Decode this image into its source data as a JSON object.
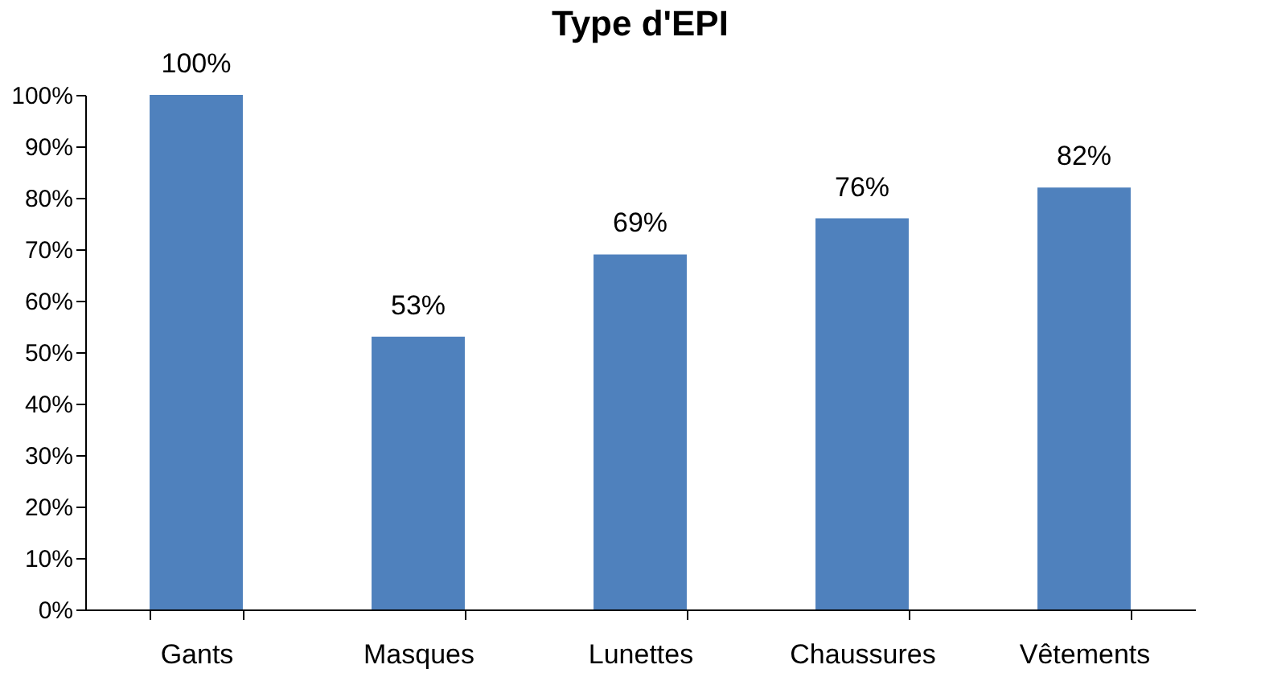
{
  "chart_data": {
    "type": "bar",
    "title": "Type d'EPI",
    "categories": [
      "Gants",
      "Masques",
      "Lunettes",
      "Chaussures",
      "Vêtements"
    ],
    "values": [
      100,
      53,
      69,
      76,
      82
    ],
    "value_labels": [
      "100%",
      "53%",
      "69%",
      "76%",
      "82%"
    ],
    "color": "#4f81bd",
    "ylim": [
      0,
      100
    ],
    "yticks": [
      {
        "value": 0,
        "label": "0%"
      },
      {
        "value": 10,
        "label": "10%"
      },
      {
        "value": 20,
        "label": "20%"
      },
      {
        "value": 30,
        "label": "30%"
      },
      {
        "value": 40,
        "label": "40%"
      },
      {
        "value": 50,
        "label": "50%"
      },
      {
        "value": 60,
        "label": "60%"
      },
      {
        "value": 70,
        "label": "70%"
      },
      {
        "value": 80,
        "label": "80%"
      },
      {
        "value": 90,
        "label": "90%"
      },
      {
        "value": 100,
        "label": "100%"
      }
    ],
    "grid": false
  }
}
